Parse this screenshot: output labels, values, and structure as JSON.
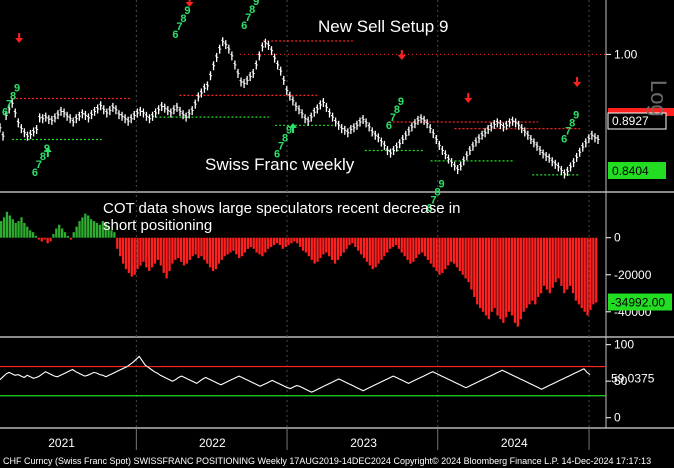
{
  "chart_data": [
    {
      "type": "line",
      "title": "Swiss Franc weekly",
      "annotation": "New Sell Setup 9",
      "axis_right_label": "Log",
      "y_ticks": [
        {
          "value": 1.0,
          "label": "1.00"
        }
      ],
      "y_range": [
        0.835,
        1.075
      ],
      "scale": "log",
      "price_labels": [
        {
          "value": "0.8927",
          "color": "#ffffff",
          "bg": "#000000"
        },
        {
          "value": "0.8404",
          "color": "#000000",
          "bg": "#22dd22"
        }
      ],
      "price_series": [
        0.907,
        0.897,
        0.922,
        0.93,
        0.937,
        0.925,
        0.913,
        0.906,
        0.901,
        0.897,
        0.899,
        0.902,
        0.905,
        0.919,
        0.918,
        0.92,
        0.917,
        0.916,
        0.919,
        0.923,
        0.927,
        0.925,
        0.921,
        0.918,
        0.914,
        0.918,
        0.921,
        0.924,
        0.922,
        0.919,
        0.923,
        0.927,
        0.93,
        0.934,
        0.929,
        0.925,
        0.928,
        0.932,
        0.929,
        0.923,
        0.921,
        0.918,
        0.915,
        0.918,
        0.922,
        0.925,
        0.927,
        0.925,
        0.921,
        0.918,
        0.921,
        0.925,
        0.929,
        0.933,
        0.931,
        0.928,
        0.925,
        0.929,
        0.932,
        0.927,
        0.923,
        0.92,
        0.924,
        0.928,
        0.936,
        0.945,
        0.95,
        0.956,
        0.959,
        0.972,
        0.985,
        0.996,
        1.007,
        1.017,
        1.013,
        1.007,
        0.998,
        0.986,
        0.975,
        0.964,
        0.962,
        0.966,
        0.971,
        0.975,
        0.986,
        0.998,
        1.01,
        1.015,
        1.012,
        1.005,
        0.995,
        0.986,
        0.978,
        0.966,
        0.953,
        0.946,
        0.94,
        0.933,
        0.929,
        0.924,
        0.918,
        0.915,
        0.92,
        0.926,
        0.93,
        0.935,
        0.938,
        0.932,
        0.925,
        0.92,
        0.914,
        0.91,
        0.906,
        0.904,
        0.901,
        0.905,
        0.907,
        0.91,
        0.914,
        0.917,
        0.913,
        0.908,
        0.902,
        0.898,
        0.895,
        0.89,
        0.886,
        0.88,
        0.877,
        0.88,
        0.884,
        0.888,
        0.893,
        0.898,
        0.903,
        0.908,
        0.912,
        0.916,
        0.918,
        0.916,
        0.912,
        0.906,
        0.9,
        0.893,
        0.886,
        0.88,
        0.875,
        0.87,
        0.866,
        0.862,
        0.858,
        0.862,
        0.868,
        0.874,
        0.88,
        0.885,
        0.89,
        0.894,
        0.898,
        0.901,
        0.905,
        0.908,
        0.911,
        0.913,
        0.911,
        0.908,
        0.91,
        0.913,
        0.915,
        0.913,
        0.91,
        0.906,
        0.902,
        0.898,
        0.893,
        0.889,
        0.885,
        0.88,
        0.876,
        0.873,
        0.871,
        0.867,
        0.864,
        0.861,
        0.857,
        0.853,
        0.856,
        0.861,
        0.866,
        0.872,
        0.878,
        0.884,
        0.889,
        0.894,
        0.898,
        0.895,
        0.893
      ],
      "red_levels": [
        {
          "from": 0.02,
          "to": 0.22,
          "value": 0.943
        },
        {
          "from": 0.3,
          "to": 0.53,
          "value": 0.947
        },
        {
          "from": 0.44,
          "to": 0.59,
          "value": 1.018
        },
        {
          "from": 0.65,
          "to": 0.9,
          "value": 0.914
        },
        {
          "from": 0.76,
          "to": 0.97,
          "value": 0.906
        }
      ],
      "green_levels": [
        {
          "from": 0.02,
          "to": 0.17,
          "value": 0.893
        },
        {
          "from": 0.26,
          "to": 0.45,
          "value": 0.92
        },
        {
          "from": 0.46,
          "to": 0.56,
          "value": 0.91
        },
        {
          "from": 0.61,
          "to": 0.71,
          "value": 0.88
        },
        {
          "from": 0.72,
          "to": 0.86,
          "value": 0.868
        },
        {
          "from": 0.89,
          "to": 0.97,
          "value": 0.852
        }
      ],
      "sell_arrows": [
        0.032,
        0.317,
        0.672,
        0.783,
        0.965
      ],
      "buy_arrows": [
        0.08,
        0.49
      ],
      "nines": [
        {
          "x": 0.03,
          "v": 0.952
        },
        {
          "x": 0.08,
          "v": 0.878
        },
        {
          "x": 0.315,
          "v": 1.055
        },
        {
          "x": 0.43,
          "v": 1.068
        },
        {
          "x": 0.485,
          "v": 0.9
        },
        {
          "x": 0.672,
          "v": 0.935
        },
        {
          "x": 0.74,
          "v": 0.838
        },
        {
          "x": 0.965,
          "v": 0.918
        }
      ]
    },
    {
      "type": "bar",
      "title": "COT data shows large speculators recent decrease in short positioning",
      "title_lines": [
        "COT data shows large speculators recent decrease in",
        "short positioning"
      ],
      "y_ticks": [
        {
          "value": 0,
          "label": "0"
        },
        {
          "value": -20000,
          "label": "-20000"
        },
        {
          "value": -40000,
          "label": "-40000"
        }
      ],
      "ylim": [
        -52000,
        22000
      ],
      "last_value_label": "-34992.00",
      "values": [
        9000,
        11000,
        14000,
        12000,
        10000,
        8000,
        9000,
        11000,
        8000,
        6000,
        4000,
        3000,
        1000,
        -1000,
        -2000,
        -1000,
        -3000,
        -2000,
        2000,
        5000,
        7000,
        5000,
        3000,
        1000,
        -1000,
        3000,
        6000,
        9000,
        11000,
        13000,
        12000,
        10000,
        9000,
        8000,
        7000,
        9000,
        8000,
        6000,
        4000,
        3000,
        -6000,
        -10000,
        -14000,
        -17000,
        -19000,
        -21000,
        -20000,
        -17000,
        -15000,
        -13000,
        -16000,
        -18000,
        -16000,
        -14000,
        -12000,
        -15000,
        -19000,
        -22000,
        -18000,
        -14000,
        -12000,
        -11000,
        -13000,
        -15000,
        -14000,
        -12000,
        -10000,
        -9000,
        -11000,
        -10000,
        -12000,
        -14000,
        -16000,
        -18000,
        -17000,
        -14000,
        -12000,
        -10000,
        -9000,
        -8000,
        -7000,
        -9000,
        -11000,
        -10000,
        -8000,
        -6000,
        -5000,
        -6000,
        -8000,
        -9000,
        -10000,
        -8000,
        -6000,
        -5000,
        -4000,
        -3000,
        -4000,
        -6000,
        -5000,
        -4000,
        -3000,
        -2000,
        -3000,
        -5000,
        -7000,
        -8000,
        -10000,
        -12000,
        -14000,
        -13000,
        -11000,
        -9000,
        -8000,
        -10000,
        -12000,
        -14000,
        -12000,
        -10000,
        -8000,
        -6000,
        -4000,
        -3000,
        -5000,
        -7000,
        -9000,
        -11000,
        -13000,
        -15000,
        -17000,
        -16000,
        -14000,
        -12000,
        -10000,
        -8000,
        -6000,
        -5000,
        -4000,
        -6000,
        -8000,
        -10000,
        -12000,
        -14000,
        -13000,
        -11000,
        -9000,
        -8000,
        -10000,
        -12000,
        -14000,
        -16000,
        -18000,
        -20000,
        -19000,
        -17000,
        -15000,
        -13000,
        -14000,
        -16000,
        -18000,
        -20000,
        -22000,
        -24000,
        -28000,
        -32000,
        -36000,
        -38000,
        -40000,
        -42000,
        -44000,
        -40000,
        -38000,
        -42000,
        -44000,
        -46000,
        -43000,
        -40000,
        -42000,
        -46000,
        -48000,
        -44000,
        -40000,
        -38000,
        -36000,
        -34000,
        -36000,
        -32000,
        -30000,
        -26000,
        -28000,
        -30000,
        -27000,
        -24000,
        -22000,
        -26000,
        -30000,
        -28000,
        -26000,
        -30000,
        -34000,
        -36000,
        -38000,
        -40000,
        -42000,
        -39000,
        -36000,
        -34992
      ]
    },
    {
      "type": "line",
      "y_ticks": [
        {
          "value": 100,
          "label": "100"
        },
        {
          "value": 50,
          "label": "50"
        },
        {
          "value": 0,
          "label": "0"
        }
      ],
      "ylim": [
        -10,
        105
      ],
      "upper_band": 70,
      "lower_band": 30,
      "last_value_label": "59.0375",
      "values": [
        52,
        56,
        60,
        62,
        60,
        58,
        59,
        57,
        55,
        58,
        56,
        54,
        55,
        57,
        60,
        63,
        61,
        59,
        57,
        56,
        58,
        60,
        62,
        64,
        66,
        63,
        61,
        59,
        57,
        58,
        60,
        62,
        61,
        59,
        58,
        56,
        58,
        60,
        62,
        64,
        66,
        68,
        70,
        73,
        76,
        80,
        84,
        78,
        72,
        69,
        66,
        63,
        61,
        58,
        56,
        54,
        52,
        50,
        52,
        55,
        57,
        55,
        53,
        51,
        49,
        47,
        50,
        53,
        55,
        53,
        51,
        49,
        47,
        45,
        47,
        49,
        51,
        53,
        55,
        57,
        55,
        53,
        51,
        49,
        47,
        45,
        43,
        45,
        47,
        49,
        51,
        49,
        47,
        45,
        43,
        41,
        40,
        42,
        44,
        43,
        41,
        39,
        37,
        35,
        37,
        39,
        41,
        43,
        45,
        47,
        49,
        51,
        53,
        51,
        49,
        47,
        45,
        43,
        41,
        39,
        37,
        39,
        41,
        43,
        45,
        47,
        49,
        51,
        53,
        55,
        57,
        55,
        53,
        51,
        49,
        47,
        49,
        51,
        53,
        55,
        57,
        59,
        61,
        63,
        61,
        59,
        57,
        55,
        53,
        51,
        49,
        47,
        45,
        43,
        41,
        43,
        45,
        47,
        49,
        51,
        53,
        55,
        57,
        59,
        61,
        63,
        65,
        63,
        61,
        59,
        57,
        55,
        53,
        51,
        49,
        47,
        45,
        43,
        41,
        39,
        41,
        43,
        45,
        47,
        49,
        51,
        53,
        55,
        57,
        59,
        61,
        63,
        65,
        67,
        62,
        59
      ]
    }
  ],
  "x_axis": {
    "years": [
      "2021",
      "2022",
      "2023",
      "2024"
    ]
  },
  "footer": "CHF Curncy (Swiss Franc Spot) SWISSFRANC POSITIONING  Weekly 17AUG2019-14DEC2024 Copyright© 2024 Bloomberg Finance L.P.  14-Dec-2024 17:17:13",
  "colors": {
    "price_line": "#ffffff",
    "bar_pos": "#2eae2e",
    "bar_neg": "#ff2020",
    "setup_green": "#2ee06a",
    "arrow_red": "#ff2020",
    "panel_border": "#8a8a8a"
  }
}
